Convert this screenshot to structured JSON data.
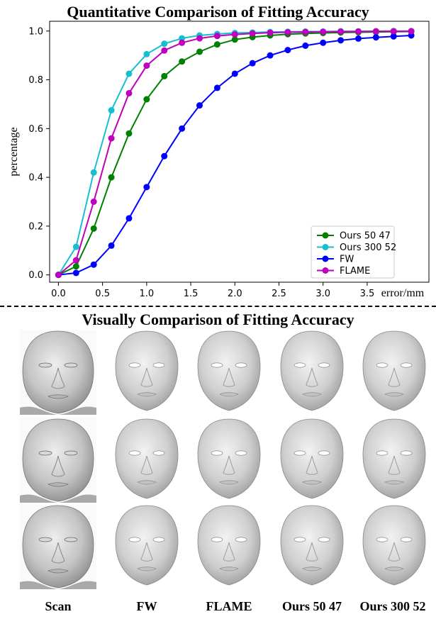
{
  "chart_data": {
    "type": "line",
    "title": "Quantitative Comparison of Fitting Accuracy",
    "xlabel": "error/mm",
    "ylabel": "percentage",
    "xlim": [
      -0.1,
      4.2
    ],
    "ylim": [
      -0.03,
      1.04
    ],
    "xticks": [
      "0.0",
      "0.5",
      "1.0",
      "1.5",
      "2.0",
      "2.5",
      "3.0",
      "3.5"
    ],
    "yticks": [
      "0.0",
      "0.2",
      "0.4",
      "0.6",
      "0.8",
      "1.0"
    ],
    "grid": false,
    "legend_position": "bottom-right",
    "x": [
      0.0,
      0.2,
      0.4,
      0.6,
      0.8,
      1.0,
      1.2,
      1.4,
      1.6,
      1.8,
      2.0,
      2.2,
      2.4,
      2.6,
      2.8,
      3.0,
      3.2,
      3.4,
      3.6,
      3.8,
      4.0
    ],
    "series": [
      {
        "name": "Ours 50 47",
        "color": "#008000",
        "values": [
          0.0,
          0.035,
          0.19,
          0.4,
          0.58,
          0.72,
          0.815,
          0.875,
          0.915,
          0.945,
          0.965,
          0.975,
          0.982,
          0.987,
          0.99,
          0.992,
          0.994,
          0.995,
          0.996,
          0.997,
          0.998
        ]
      },
      {
        "name": "Ours 300 52",
        "color": "#17becf",
        "values": [
          0.0,
          0.115,
          0.42,
          0.675,
          0.825,
          0.905,
          0.948,
          0.97,
          0.982,
          0.988,
          0.992,
          0.994,
          0.996,
          0.997,
          0.998,
          0.998,
          0.999,
          0.999,
          0.999,
          1.0,
          1.0
        ]
      },
      {
        "name": "FW",
        "color": "#0000ff",
        "values": [
          0.0,
          0.008,
          0.042,
          0.12,
          0.232,
          0.36,
          0.487,
          0.6,
          0.695,
          0.767,
          0.825,
          0.868,
          0.9,
          0.922,
          0.94,
          0.952,
          0.962,
          0.969,
          0.974,
          0.978,
          0.982
        ]
      },
      {
        "name": "FLAME",
        "color": "#bf00bf",
        "values": [
          0.0,
          0.06,
          0.3,
          0.56,
          0.745,
          0.858,
          0.92,
          0.952,
          0.97,
          0.98,
          0.986,
          0.99,
          0.993,
          0.995,
          0.996,
          0.997,
          0.998,
          0.998,
          0.999,
          0.999,
          0.999
        ]
      }
    ]
  },
  "visual_section": {
    "title": "Visually Comparison of Fitting Accuracy",
    "columns": [
      "Scan",
      "FW",
      "FLAME",
      "Ours 50 47",
      "Ours 300 52"
    ]
  }
}
